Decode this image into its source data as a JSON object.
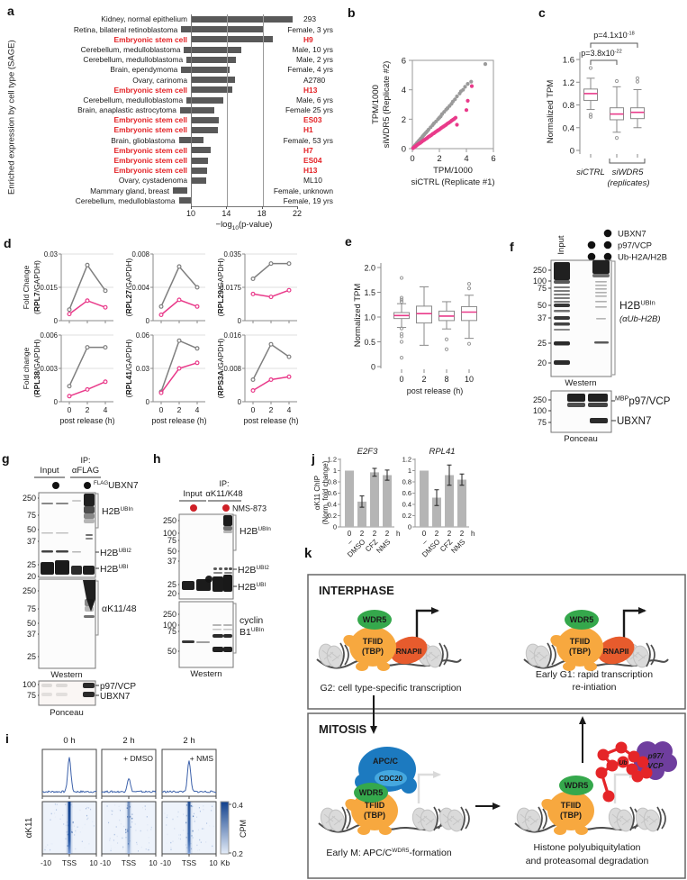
{
  "colors": {
    "bar": "#595959",
    "red": "#e32226",
    "pink": "#e93a8a",
    "gray_series": "#7f7f7f",
    "axis": "#8a8a8a",
    "blue_profile": "#3d62ab",
    "heat_dark": "#10408c",
    "bar_light": "#b5b5b5",
    "green": "#35a84c",
    "orange": "#f7a83f",
    "rnap": "#e75b2d",
    "apc": "#1c7ac0",
    "cdc20": "#45a8df",
    "purple": "#6f3e9e",
    "ub": "#e52528",
    "nms_red": "#cf2027"
  },
  "panels": {
    "a": {
      "label": "a",
      "ylabel": "Enriched expression by cell type (SAGE)",
      "xlabel_pre": "−log",
      "xlabel_sub": "10",
      "xlabel_post": "(p-value)",
      "xmin": 10,
      "xmax": 22,
      "xticks": [
        "10",
        "14",
        "18",
        "22"
      ],
      "gridlines": [
        14,
        18
      ],
      "rows": [
        {
          "name": "Kidney, normal epithelium",
          "value": 21.5,
          "tag": "293",
          "red": false
        },
        {
          "name": "Retina, bilateral retinoblastoma",
          "value": 19.3,
          "tag": "Female, 3 yrs",
          "red": false
        },
        {
          "name": "Embryonic stem cell",
          "value": 19.2,
          "tag": "H9",
          "red": true
        },
        {
          "name": "Cerebellum, medulloblastoma",
          "value": 16.5,
          "tag": "Male, 10 yrs",
          "red": false
        },
        {
          "name": "Cerebellum, medulloblastoma",
          "value": 15.6,
          "tag": "Male, 2 yrs",
          "red": false
        },
        {
          "name": "Brain, ependymoma",
          "value": 15.5,
          "tag": "Female, 4 yrs",
          "red": false
        },
        {
          "name": "Ovary, carinoma",
          "value": 15.0,
          "tag": "A2780",
          "red": false
        },
        {
          "name": "Embryonic stem cell",
          "value": 14.7,
          "tag": "H13",
          "red": true
        },
        {
          "name": "Cerebellum, medulloblastoma",
          "value": 14.1,
          "tag": "Male, 6 yrs",
          "red": false
        },
        {
          "name": "Brain, anaplastic astrocytoma",
          "value": 13.9,
          "tag": "Female 25 yrs",
          "red": false
        },
        {
          "name": "Embryonic stem cell",
          "value": 13.1,
          "tag": "ES03",
          "red": true
        },
        {
          "name": "Embryonic stem cell",
          "value": 13.0,
          "tag": "H1",
          "red": true
        },
        {
          "name": "Brain, glioblastoma",
          "value": 12.8,
          "tag": "Female, 53 yrs",
          "red": false
        },
        {
          "name": "Embryonic stem cell",
          "value": 12.2,
          "tag": "H7",
          "red": true
        },
        {
          "name": "Embryonic stem cell",
          "value": 11.9,
          "tag": "ES04",
          "red": true
        },
        {
          "name": "Embryonic stem cell",
          "value": 11.8,
          "tag": "H13",
          "red": true
        },
        {
          "name": "Ovary, cystadenoma",
          "value": 11.7,
          "tag": "ML10",
          "red": false
        },
        {
          "name": "Mammary gland, breast",
          "value": 11.6,
          "tag": "Female, unknown",
          "red": false
        },
        {
          "name": "Cerebellum, medulloblastoma",
          "value": 11.5,
          "tag": "Female, 19 yrs",
          "red": false
        }
      ]
    },
    "b": {
      "label": "b",
      "ylabel1": "TPM/1000",
      "ylabel2": "siWDR5 (Replicate #2)",
      "xlabel1": "TPM/1000",
      "xlabel2": "siCTRL (Replicate #1)",
      "ticks": [
        "0",
        "2",
        "4",
        "6"
      ],
      "gray": [
        [
          0.05,
          0.06
        ],
        [
          0.08,
          0.1
        ],
        [
          0.12,
          0.13
        ],
        [
          0.18,
          0.2
        ],
        [
          0.22,
          0.25
        ],
        [
          0.28,
          0.3
        ],
        [
          0.32,
          0.36
        ],
        [
          0.38,
          0.42
        ],
        [
          0.45,
          0.5
        ],
        [
          0.5,
          0.55
        ],
        [
          0.55,
          0.6
        ],
        [
          0.62,
          0.68
        ],
        [
          0.7,
          0.75
        ],
        [
          0.75,
          0.82
        ],
        [
          0.82,
          0.9
        ],
        [
          0.9,
          0.98
        ],
        [
          1.0,
          1.08
        ],
        [
          1.1,
          1.18
        ],
        [
          1.2,
          1.3
        ],
        [
          1.35,
          1.45
        ],
        [
          1.5,
          1.6
        ],
        [
          1.6,
          1.72
        ],
        [
          1.75,
          1.85
        ],
        [
          1.9,
          2.0
        ],
        [
          2.0,
          2.1
        ],
        [
          2.1,
          2.2
        ],
        [
          2.2,
          2.35
        ],
        [
          2.35,
          2.5
        ],
        [
          2.5,
          2.65
        ],
        [
          2.6,
          2.75
        ],
        [
          2.75,
          2.9
        ],
        [
          2.9,
          3.05
        ],
        [
          3.0,
          3.2
        ],
        [
          3.15,
          3.35
        ],
        [
          3.3,
          3.55
        ],
        [
          3.5,
          3.75
        ],
        [
          3.6,
          3.9
        ],
        [
          3.75,
          4.0
        ],
        [
          3.9,
          4.2
        ],
        [
          4.1,
          4.4
        ],
        [
          4.35,
          4.55
        ],
        [
          5.4,
          5.75
        ]
      ],
      "pink": [
        [
          0.05,
          0.03
        ],
        [
          0.1,
          0.07
        ],
        [
          0.18,
          0.12
        ],
        [
          0.25,
          0.17
        ],
        [
          0.32,
          0.22
        ],
        [
          0.4,
          0.28
        ],
        [
          0.5,
          0.34
        ],
        [
          0.6,
          0.4
        ],
        [
          0.7,
          0.47
        ],
        [
          0.8,
          0.54
        ],
        [
          0.9,
          0.6
        ],
        [
          1.0,
          0.66
        ],
        [
          1.1,
          0.73
        ],
        [
          1.2,
          0.8
        ],
        [
          1.3,
          0.86
        ],
        [
          1.4,
          0.92
        ],
        [
          1.5,
          1.0
        ],
        [
          1.6,
          1.05
        ],
        [
          1.7,
          1.12
        ],
        [
          1.8,
          1.18
        ],
        [
          1.9,
          1.25
        ],
        [
          2.0,
          1.3
        ],
        [
          2.1,
          1.38
        ],
        [
          2.2,
          1.44
        ],
        [
          2.3,
          1.5
        ],
        [
          2.4,
          1.56
        ],
        [
          2.5,
          1.62
        ],
        [
          2.6,
          1.7
        ],
        [
          2.7,
          1.76
        ],
        [
          2.8,
          1.82
        ],
        [
          2.9,
          1.9
        ],
        [
          3.0,
          1.96
        ],
        [
          3.1,
          2.02
        ],
        [
          3.2,
          2.1
        ],
        [
          3.3,
          1.62
        ],
        [
          4.0,
          2.62
        ],
        [
          4.1,
          3.25
        ],
        [
          4.4,
          4.25
        ]
      ]
    },
    "c": {
      "label": "c",
      "ylabel": "Normalized TPM",
      "yticks": [
        "0",
        "0.4",
        "0.8",
        "1.2",
        "1.6"
      ],
      "pvals": [
        {
          "text": "p=4.1x10",
          "exp": "-18"
        },
        {
          "text": "p=3.8x10",
          "exp": "-22"
        }
      ],
      "group1": "siCTRL",
      "group2": "siWDR5",
      "sub": "(replicates)",
      "boxes": [
        {
          "lo": 0.72,
          "q1": 0.88,
          "med": 1.0,
          "q3": 1.08,
          "hi": 1.27,
          "out": [
            1.45,
            0.63,
            0.59
          ]
        },
        {
          "lo": 0.32,
          "q1": 0.54,
          "med": 0.64,
          "q3": 0.75,
          "hi": 1.12,
          "out": [
            1.22,
            0.22
          ]
        },
        {
          "lo": 0.4,
          "q1": 0.56,
          "med": 0.67,
          "q3": 0.75,
          "hi": 1.07,
          "out": [
            1.27,
            1.21
          ]
        }
      ]
    },
    "d": {
      "label": "d",
      "xlabel": "post release (h)",
      "xticks": [
        "0",
        "2",
        "4"
      ],
      "charts": [
        {
          "prefix": "Fold Change",
          "gene": "RPL7",
          "ymax": 0.03,
          "yticks": [
            "0",
            "0.015",
            "0.03"
          ],
          "gray": [
            0.005,
            0.025,
            0.0135
          ],
          "pink": [
            0.003,
            0.009,
            0.006
          ]
        },
        {
          "prefix": "",
          "gene": "RPL27",
          "ymax": 0.008,
          "yticks": [
            "0",
            "0.004",
            "0.008"
          ],
          "gray": [
            0.0017,
            0.0065,
            0.004
          ],
          "pink": [
            0.0007,
            0.0025,
            0.0017
          ]
        },
        {
          "prefix": "",
          "gene": "RPL29",
          "ymax": 0.035,
          "yticks": [
            "0",
            "0.0175",
            "0.035"
          ],
          "gray": [
            0.022,
            0.03,
            0.03
          ],
          "pink": [
            0.014,
            0.0125,
            0.016
          ]
        },
        {
          "prefix": "Fold change",
          "gene": "RPL38",
          "ymax": 0.006,
          "yticks": [
            "0",
            "0.003",
            "0.006"
          ],
          "gray": [
            0.0014,
            0.0049,
            0.0049
          ],
          "pink": [
            0.0005,
            0.0011,
            0.0018
          ]
        },
        {
          "prefix": "",
          "gene": "RPL41",
          "ymax": 0.06,
          "yticks": [
            "0",
            "0.03",
            "0.06"
          ],
          "gray": [
            0.009,
            0.055,
            0.048
          ],
          "pink": [
            0.008,
            0.03,
            0.035
          ]
        },
        {
          "prefix": "",
          "gene": "RPS3A",
          "ymax": 0.016,
          "yticks": [
            "0",
            "0.008",
            "0.016"
          ],
          "gray": [
            0.0053,
            0.0138,
            0.0108
          ],
          "pink": [
            0.0027,
            0.0053,
            0.006
          ]
        }
      ]
    },
    "e": {
      "label": "e",
      "ylabel": "Normalized TPM",
      "yticks": [
        "0",
        "0.5",
        "1.0",
        "1.5",
        "2.0"
      ],
      "xlabel": "post release (h)",
      "cats": [
        "0",
        "2",
        "8",
        "10"
      ],
      "boxes": [
        {
          "lo": 0.79,
          "q1": 0.97,
          "med": 1.03,
          "q3": 1.09,
          "hi": 1.27,
          "out": [
            1.79,
            1.39,
            1.35,
            1.31,
            0.77,
            0.66,
            0.61,
            0.5,
            0.18
          ]
        },
        {
          "lo": 0.43,
          "q1": 0.88,
          "med": 1.07,
          "q3": 1.22,
          "hi": 1.61,
          "out": []
        },
        {
          "lo": 0.76,
          "q1": 0.93,
          "med": 1.02,
          "q3": 1.12,
          "hi": 1.31,
          "out": [
            0.55,
            0.35
          ]
        },
        {
          "lo": 0.57,
          "q1": 0.93,
          "med": 1.1,
          "q3": 1.21,
          "hi": 1.44,
          "out": [
            1.67,
            1.58,
            0.46
          ]
        }
      ]
    },
    "f": {
      "label": "f",
      "legend": [
        {
          "label": "UBXN7",
          "dots": [
            0,
            1
          ]
        },
        {
          "label": "p97/VCP",
          "dots": [
            1,
            1
          ]
        },
        {
          "label": "Ub-H2A/H2B",
          "dots": [
            1,
            1
          ]
        }
      ],
      "lane": "Input",
      "markers_top": [
        "250",
        "100",
        "75",
        "50",
        "37",
        "25",
        "20"
      ],
      "annot_main": "H2B",
      "annot_sup": "UBIn",
      "annot_sub": "(αUb-H2B)",
      "western": "Western",
      "markers_bottom": [
        "250",
        "100",
        "75"
      ],
      "mbp": "MBP",
      "p97": "p97/VCP",
      "ubxn7": "UBXN7",
      "ponceau": "Ponceau"
    },
    "g": {
      "label": "g",
      "ip": "IP:",
      "lane1": "Input",
      "lane2": "αFLAG",
      "bait_sup": "FLAG",
      "bait": "UBXN7",
      "markers1": [
        "250",
        "75",
        "50",
        "37",
        "25",
        "20"
      ],
      "markers2": [
        "250",
        "75",
        "50",
        "37",
        "25"
      ],
      "ubin": "H2B",
      "ubin_sup": "UBIn",
      "ubi2": "H2B",
      "ubi2_sup": "UBI2",
      "ubi": "H2B",
      "ubi_sup": "UBI",
      "k1148": "αK11/48",
      "western": "Western",
      "markers3": [
        "100",
        "75"
      ],
      "p97": "p97/VCP",
      "ubxn7": "UBXN7",
      "ponceau": "Ponceau"
    },
    "h": {
      "label": "h",
      "ip": "IP:",
      "lane1": "Input",
      "lane2": "αK11/K48",
      "drug": "NMS-873",
      "markers1": [
        "250",
        "100",
        "75",
        "50",
        "37",
        "25",
        "20"
      ],
      "markers2": [
        "250",
        "100",
        "75",
        "50"
      ],
      "ubin": "H2B",
      "ubin_sup": "UBIn",
      "ubi2": "H2B",
      "ubi2_sup": "UBI2",
      "ubi": "H2B",
      "ubi_sup": "UBI",
      "cyclin1": "cyclin",
      "cyclin2": "B1",
      "cyclin_sup": "UBIn",
      "western": "Western"
    },
    "i": {
      "label": "i",
      "cols": [
        {
          "title": "0 h",
          "note": ""
        },
        {
          "title": "2 h",
          "note": "+ DMSO"
        },
        {
          "title": "2 h",
          "note": "+ NMS"
        }
      ],
      "row_label": "αK11",
      "xticks": [
        "-10",
        "TSS",
        "10"
      ],
      "unit": "Kb",
      "cbar_top": "0.4",
      "cbar_bottom": "0.2",
      "cbar": "CPM",
      "peaks": [
        1.0,
        0.4,
        0.9
      ]
    },
    "j": {
      "label": "j",
      "ylabel1": "αK11 ChIP",
      "ylabel2": "(Norm. fold change)",
      "yticks": [
        "0",
        "0.2",
        "0.4",
        "0.6",
        "0.8",
        "1",
        "1.2"
      ],
      "times": [
        "0",
        "2",
        "2",
        "2"
      ],
      "unit": "h",
      "treatments": [
        "–",
        "DMSO",
        "CFZ",
        "NMS"
      ],
      "charts": [
        {
          "title": "E2F3",
          "values": [
            1,
            0.45,
            0.97,
            0.92
          ],
          "err": [
            0,
            0.1,
            0.07,
            0.09
          ]
        },
        {
          "title": "RPL41",
          "values": [
            1,
            0.52,
            0.92,
            0.84
          ],
          "err": [
            0,
            0.14,
            0.18,
            0.1
          ]
        }
      ]
    },
    "k": {
      "label": "k",
      "interphase": "INTERPHASE",
      "mitosis": "MITOSIS",
      "cap_g2": "G2: cell type-specific transcription",
      "cap_g1a": "Early G1: rapid transcription",
      "cap_g1b": "re-intiation",
      "cap_m_pre": "Early M: APC/C",
      "cap_m_sup": "WDR5",
      "cap_m_post": "-formation",
      "cap_d1": "Histone polyubiquitylation",
      "cap_d2": "and proteasomal degradation",
      "wdr5": "WDR5",
      "tfiid1": "TFIID",
      "tfiid2": "(TBP)",
      "rnap": "RNAPII",
      "apc": "APC/C",
      "cdc20": "CDC20",
      "p97a": "p97/",
      "p97b": "VCP",
      "ub": "Ub"
    }
  }
}
